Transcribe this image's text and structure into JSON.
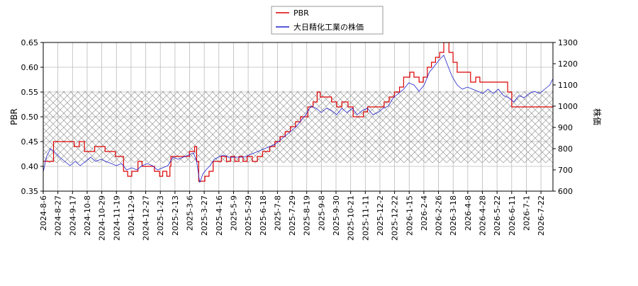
{
  "chart_data": {
    "type": "line",
    "legend": {
      "position": "top-center",
      "entries": [
        "PBR",
        "大日精化工業の株価"
      ]
    },
    "colors": {
      "pbr": "#dd0000",
      "price": "#2222cc",
      "grid": "#bbbbbb",
      "band_hatch": "#999999"
    },
    "x_axis": {
      "tick_labels": [
        "2024-8-6",
        "2024-8-27",
        "2024-9-17",
        "2024-10-8",
        "2024-10-29",
        "2024-11-19",
        "2024-12-9",
        "2024-12-27",
        "2025-1-23",
        "2025-2-13",
        "2025-3-6",
        "2025-3-27",
        "2025-4-16",
        "2025-5-9",
        "2025-5-29",
        "2025-6-18",
        "2025-7-8",
        "2025-7-29",
        "2025-8-19",
        "2025-9-8",
        "2025-9-30",
        "2025-10-21",
        "2025-11-11",
        "2025-12-2",
        "2025-12-22",
        "2026-1-15",
        "2026-2-4",
        "2026-2-26",
        "2026-3-18",
        "2026-4-8",
        "2026-4-28",
        "2026-5-22",
        "2026-6-11",
        "2026-7-1",
        "2026-7-22"
      ]
    },
    "y_left": {
      "label": "PBR",
      "range": [
        0.35,
        0.65
      ],
      "ticks": [
        "0.35",
        "0.40",
        "0.45",
        "0.50",
        "0.55",
        "0.60",
        "0.65"
      ]
    },
    "y_right": {
      "label": "株価",
      "range": [
        600,
        1300
      ],
      "ticks": [
        "600",
        "700",
        "800",
        "900",
        "1000",
        "1100",
        "1200",
        "1300"
      ]
    },
    "grid": true,
    "hatched_band": {
      "pbr_range": [
        0.407,
        0.552
      ]
    },
    "series": [
      {
        "name": "PBR",
        "axis": "left",
        "step": true,
        "points": [
          [
            0,
            0.41
          ],
          [
            1,
            0.45
          ],
          [
            3,
            0.44
          ],
          [
            3.5,
            0.45
          ],
          [
            4,
            0.43
          ],
          [
            5,
            0.44
          ],
          [
            6,
            0.43
          ],
          [
            7,
            0.42
          ],
          [
            7.8,
            0.39
          ],
          [
            8.2,
            0.38
          ],
          [
            8.6,
            0.39
          ],
          [
            9.2,
            0.41
          ],
          [
            9.6,
            0.4
          ],
          [
            10.8,
            0.39
          ],
          [
            11.3,
            0.38
          ],
          [
            11.6,
            0.39
          ],
          [
            12,
            0.38
          ],
          [
            12.3,
            0.4
          ],
          [
            12.4,
            0.42
          ],
          [
            13,
            0.42
          ],
          [
            14.2,
            0.43
          ],
          [
            14.7,
            0.44
          ],
          [
            14.9,
            0.41
          ],
          [
            15.1,
            0.37
          ],
          [
            15.7,
            0.38
          ],
          [
            16.1,
            0.39
          ],
          [
            16.5,
            0.41
          ],
          [
            17.3,
            0.42
          ],
          [
            17.8,
            0.41
          ],
          [
            18.2,
            0.42
          ],
          [
            18.6,
            0.41
          ],
          [
            19,
            0.42
          ],
          [
            19.4,
            0.41
          ],
          [
            19.8,
            0.42
          ],
          [
            20.3,
            0.41
          ],
          [
            20.8,
            0.42
          ],
          [
            21.3,
            0.43
          ],
          [
            22,
            0.44
          ],
          [
            22.5,
            0.45
          ],
          [
            23,
            0.46
          ],
          [
            23.5,
            0.47
          ],
          [
            24,
            0.48
          ],
          [
            24.5,
            0.49
          ],
          [
            25,
            0.5
          ],
          [
            25.7,
            0.52
          ],
          [
            26.2,
            0.53
          ],
          [
            26.6,
            0.55
          ],
          [
            26.9,
            0.54
          ],
          [
            28,
            0.53
          ],
          [
            28.5,
            0.52
          ],
          [
            29,
            0.53
          ],
          [
            29.6,
            0.52
          ],
          [
            30.1,
            0.5
          ],
          [
            31.1,
            0.51
          ],
          [
            31.5,
            0.52
          ],
          [
            32.5,
            0.52
          ],
          [
            33.1,
            0.53
          ],
          [
            33.6,
            0.54
          ],
          [
            34.1,
            0.55
          ],
          [
            34.6,
            0.56
          ],
          [
            35.0,
            0.58
          ],
          [
            35.6,
            0.59
          ],
          [
            36.0,
            0.58
          ],
          [
            36.5,
            0.57
          ],
          [
            36.9,
            0.58
          ],
          [
            37.3,
            0.6
          ],
          [
            37.7,
            0.61
          ],
          [
            38.1,
            0.62
          ],
          [
            38.5,
            0.63
          ],
          [
            38.9,
            0.65
          ],
          [
            39.4,
            0.63
          ],
          [
            39.8,
            0.61
          ],
          [
            40.2,
            0.59
          ],
          [
            41.0,
            0.59
          ],
          [
            41.5,
            0.57
          ],
          [
            42.0,
            0.58
          ],
          [
            42.4,
            0.57
          ],
          [
            44.6,
            0.57
          ],
          [
            45.1,
            0.55
          ],
          [
            45.5,
            0.52
          ],
          [
            49.5,
            0.52
          ]
        ]
      },
      {
        "name": "大日精化工業の株価",
        "axis": "right",
        "step": false,
        "points": [
          [
            0,
            690
          ],
          [
            0.3,
            760
          ],
          [
            0.7,
            800
          ],
          [
            1.2,
            780
          ],
          [
            1.6,
            760
          ],
          [
            2.1,
            740
          ],
          [
            2.6,
            720
          ],
          [
            3.1,
            740
          ],
          [
            3.6,
            720
          ],
          [
            4.1,
            740
          ],
          [
            4.6,
            760
          ],
          [
            5.1,
            740
          ],
          [
            5.6,
            750
          ],
          [
            6.1,
            740
          ],
          [
            6.6,
            730
          ],
          [
            7.1,
            720
          ],
          [
            7.6,
            730
          ],
          [
            8.1,
            700
          ],
          [
            8.6,
            710
          ],
          [
            9.1,
            700
          ],
          [
            9.6,
            720
          ],
          [
            10.1,
            730
          ],
          [
            10.6,
            720
          ],
          [
            11.1,
            700
          ],
          [
            11.6,
            710
          ],
          [
            12.1,
            720
          ],
          [
            12.6,
            760
          ],
          [
            13.1,
            750
          ],
          [
            13.6,
            760
          ],
          [
            14.1,
            770
          ],
          [
            14.6,
            780
          ],
          [
            14.9,
            740
          ],
          [
            15.2,
            640
          ],
          [
            15.5,
            680
          ],
          [
            15.8,
            700
          ],
          [
            16.2,
            720
          ],
          [
            16.6,
            750
          ],
          [
            17.0,
            760
          ],
          [
            17.5,
            770
          ],
          [
            18.0,
            760
          ],
          [
            18.5,
            760
          ],
          [
            19.0,
            760
          ],
          [
            19.5,
            760
          ],
          [
            20.0,
            770
          ],
          [
            20.5,
            780
          ],
          [
            21.0,
            790
          ],
          [
            21.5,
            800
          ],
          [
            22.0,
            810
          ],
          [
            22.5,
            820
          ],
          [
            23.0,
            840
          ],
          [
            23.5,
            860
          ],
          [
            24.0,
            880
          ],
          [
            24.5,
            900
          ],
          [
            25.0,
            930
          ],
          [
            25.5,
            960
          ],
          [
            26.0,
            1000
          ],
          [
            26.5,
            990
          ],
          [
            27.0,
            970
          ],
          [
            27.5,
            990
          ],
          [
            28.0,
            980
          ],
          [
            28.5,
            960
          ],
          [
            29.0,
            990
          ],
          [
            29.5,
            970
          ],
          [
            30.0,
            990
          ],
          [
            30.5,
            960
          ],
          [
            31.0,
            980
          ],
          [
            31.5,
            990
          ],
          [
            32.0,
            960
          ],
          [
            32.5,
            970
          ],
          [
            33.0,
            990
          ],
          [
            33.5,
            1000
          ],
          [
            34.0,
            1040
          ],
          [
            34.5,
            1060
          ],
          [
            35.0,
            1080
          ],
          [
            35.5,
            1110
          ],
          [
            36.0,
            1100
          ],
          [
            36.5,
            1070
          ],
          [
            37.0,
            1100
          ],
          [
            37.5,
            1160
          ],
          [
            38.0,
            1190
          ],
          [
            38.5,
            1220
          ],
          [
            38.9,
            1240
          ],
          [
            39.3,
            1190
          ],
          [
            39.7,
            1140
          ],
          [
            40.2,
            1100
          ],
          [
            40.7,
            1080
          ],
          [
            41.2,
            1090
          ],
          [
            41.7,
            1080
          ],
          [
            42.2,
            1070
          ],
          [
            42.7,
            1060
          ],
          [
            43.2,
            1080
          ],
          [
            43.7,
            1060
          ],
          [
            44.2,
            1080
          ],
          [
            44.7,
            1050
          ],
          [
            45.2,
            1040
          ],
          [
            45.7,
            1020
          ],
          [
            46.2,
            1050
          ],
          [
            46.7,
            1040
          ],
          [
            47.2,
            1060
          ],
          [
            47.7,
            1070
          ],
          [
            48.2,
            1060
          ],
          [
            48.7,
            1080
          ],
          [
            49.2,
            1100
          ],
          [
            49.5,
            1130
          ]
        ]
      }
    ]
  }
}
